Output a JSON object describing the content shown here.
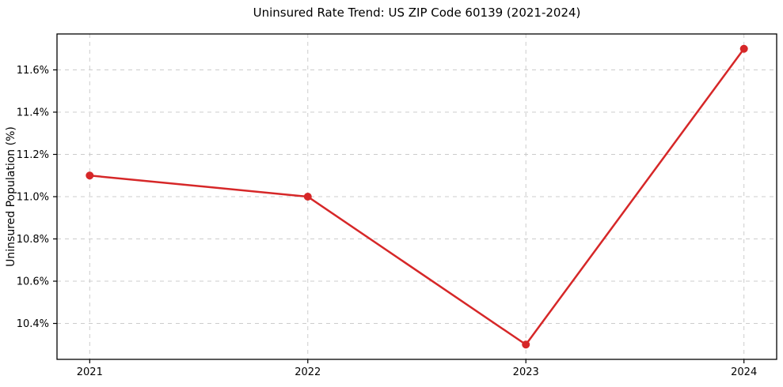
{
  "chart_data": {
    "type": "line",
    "title": "Uninsured Rate Trend: US ZIP Code 60139 (2021-2024)",
    "xlabel": "",
    "ylabel": "Uninsured Population (%)",
    "x": [
      2021,
      2022,
      2023,
      2024
    ],
    "values": [
      11.1,
      11.0,
      10.3,
      11.7
    ],
    "xticks": [
      2021,
      2022,
      2023,
      2024
    ],
    "xtick_labels": [
      "2021",
      "2022",
      "2023",
      "2024"
    ],
    "yticks": [
      10.4,
      10.6,
      10.8,
      11.0,
      11.2,
      11.4,
      11.6
    ],
    "ytick_labels": [
      "10.4%",
      "10.6%",
      "10.8%",
      "11.0%",
      "11.2%",
      "11.4%",
      "11.6%"
    ],
    "xlim": [
      2020.85,
      2024.15
    ],
    "ylim": [
      10.23,
      11.77
    ],
    "grid": true,
    "grid_style": "dashed",
    "legend_position": "none",
    "colors": {
      "line": "#d62728",
      "marker": "#d62728",
      "grid": "#cccccc",
      "spine": "#000000",
      "background": "#ffffff"
    }
  }
}
